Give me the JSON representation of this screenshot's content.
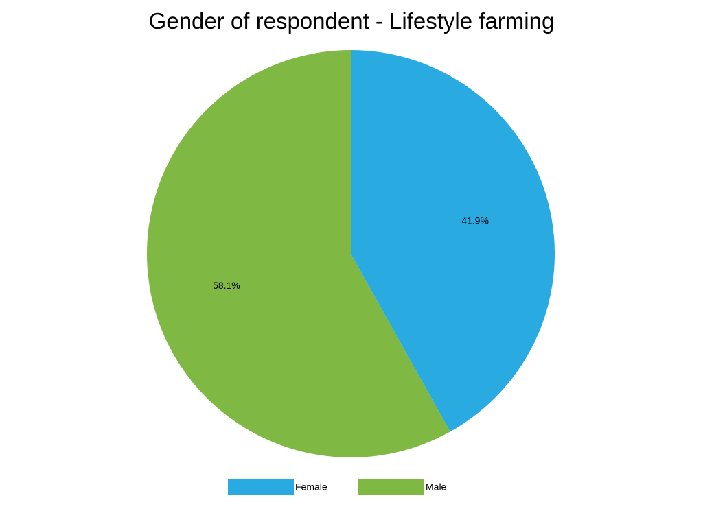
{
  "chart_data": {
    "type": "pie",
    "title": "Gender of respondent - Lifestyle farming",
    "categories": [
      "Female",
      "Male"
    ],
    "values": [
      41.9,
      58.1
    ],
    "labels": [
      "41.9%",
      "58.1%"
    ],
    "colors": [
      "#29aae1",
      "#7fb843"
    ],
    "start_angle_deg": 0,
    "direction": "clockwise",
    "legend_position": "bottom"
  }
}
